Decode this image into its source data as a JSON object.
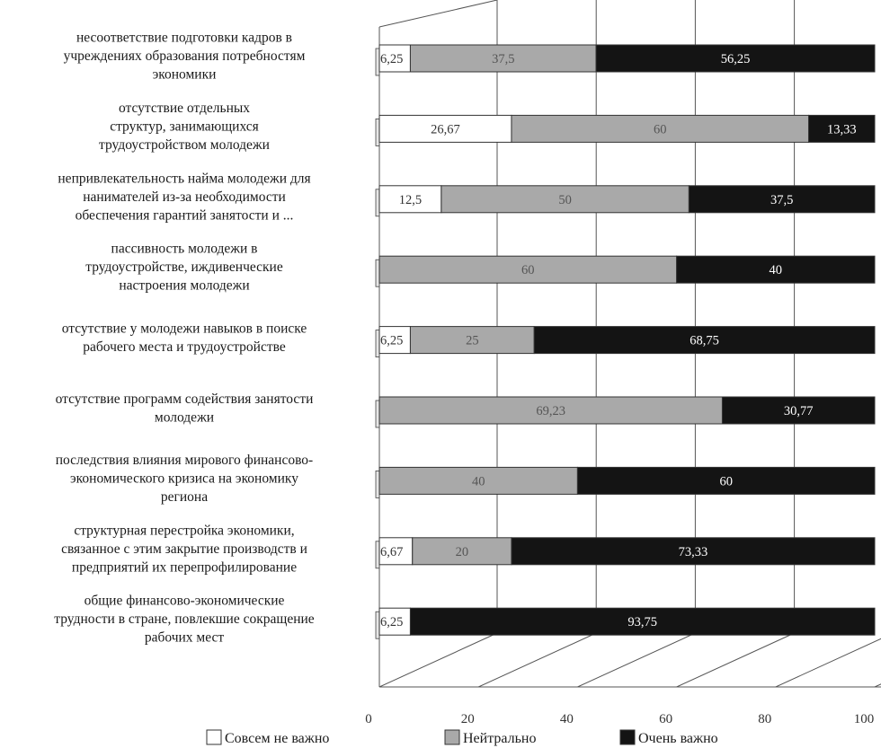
{
  "chart_data": {
    "type": "bar",
    "orientation": "horizontal",
    "stacked": true,
    "style": "3d",
    "categories": [
      [
        "несоответствие подготовки кадров в",
        "учреждениях образования потребностям",
        "экономики"
      ],
      [
        "отсутствие отдельных",
        "структур, занимающихся",
        "трудоустройством молодежи"
      ],
      [
        "непривлекательность найма молодежи для",
        "нанимателей из-за необходимости",
        "обеспечения гарантий занятости и ..."
      ],
      [
        "пассивность молодежи в",
        "трудоустройстве, иждивенческие",
        "настроения молодежи"
      ],
      [
        "отсутствие у молодежи навыков в поиске",
        "рабочего места и трудоустройстве"
      ],
      [
        "отсутствие программ содействия занятости",
        "молодежи"
      ],
      [
        "последствия влияния мирового финансово-",
        "экономического кризиса на экономику",
        "региона"
      ],
      [
        "структурная перестройка экономики,",
        "связанное с этим закрытие производств и",
        "предприятий их перепрофилирование"
      ],
      [
        "общие финансово-экономические",
        "трудности в стране, повлекшие сокращение",
        "рабочих мест"
      ]
    ],
    "series": [
      {
        "name": "Совсем не важно",
        "color": "#ffffff",
        "values": [
          6.25,
          26.67,
          12.5,
          0,
          6.25,
          0,
          0,
          6.67,
          6.25
        ],
        "labels": [
          "6,25",
          "26,67",
          "12,5",
          "0",
          "6,25",
          "0",
          "0",
          "6,67",
          "6,25"
        ]
      },
      {
        "name": "Нейтрально",
        "color": "#a9a9a9",
        "values": [
          37.5,
          60,
          50,
          60,
          25,
          69.23,
          40,
          20,
          0
        ],
        "labels": [
          "37,5",
          "60",
          "50",
          "60",
          "25",
          "69,23",
          "40",
          "20",
          ""
        ]
      },
      {
        "name": "Очень важно",
        "color": "#141414",
        "values": [
          56.25,
          13.33,
          37.5,
          40,
          68.75,
          30.77,
          60,
          73.33,
          93.75
        ],
        "labels": [
          "56,25",
          "13,33",
          "37,5",
          "40",
          "68,75",
          "30,77",
          "60",
          "73,33",
          "93,75"
        ]
      }
    ],
    "x_ticks": [
      "0",
      "20",
      "40",
      "60",
      "80",
      "100"
    ],
    "xlim": [
      0,
      100
    ],
    "grid": true,
    "legend": "bottom"
  }
}
